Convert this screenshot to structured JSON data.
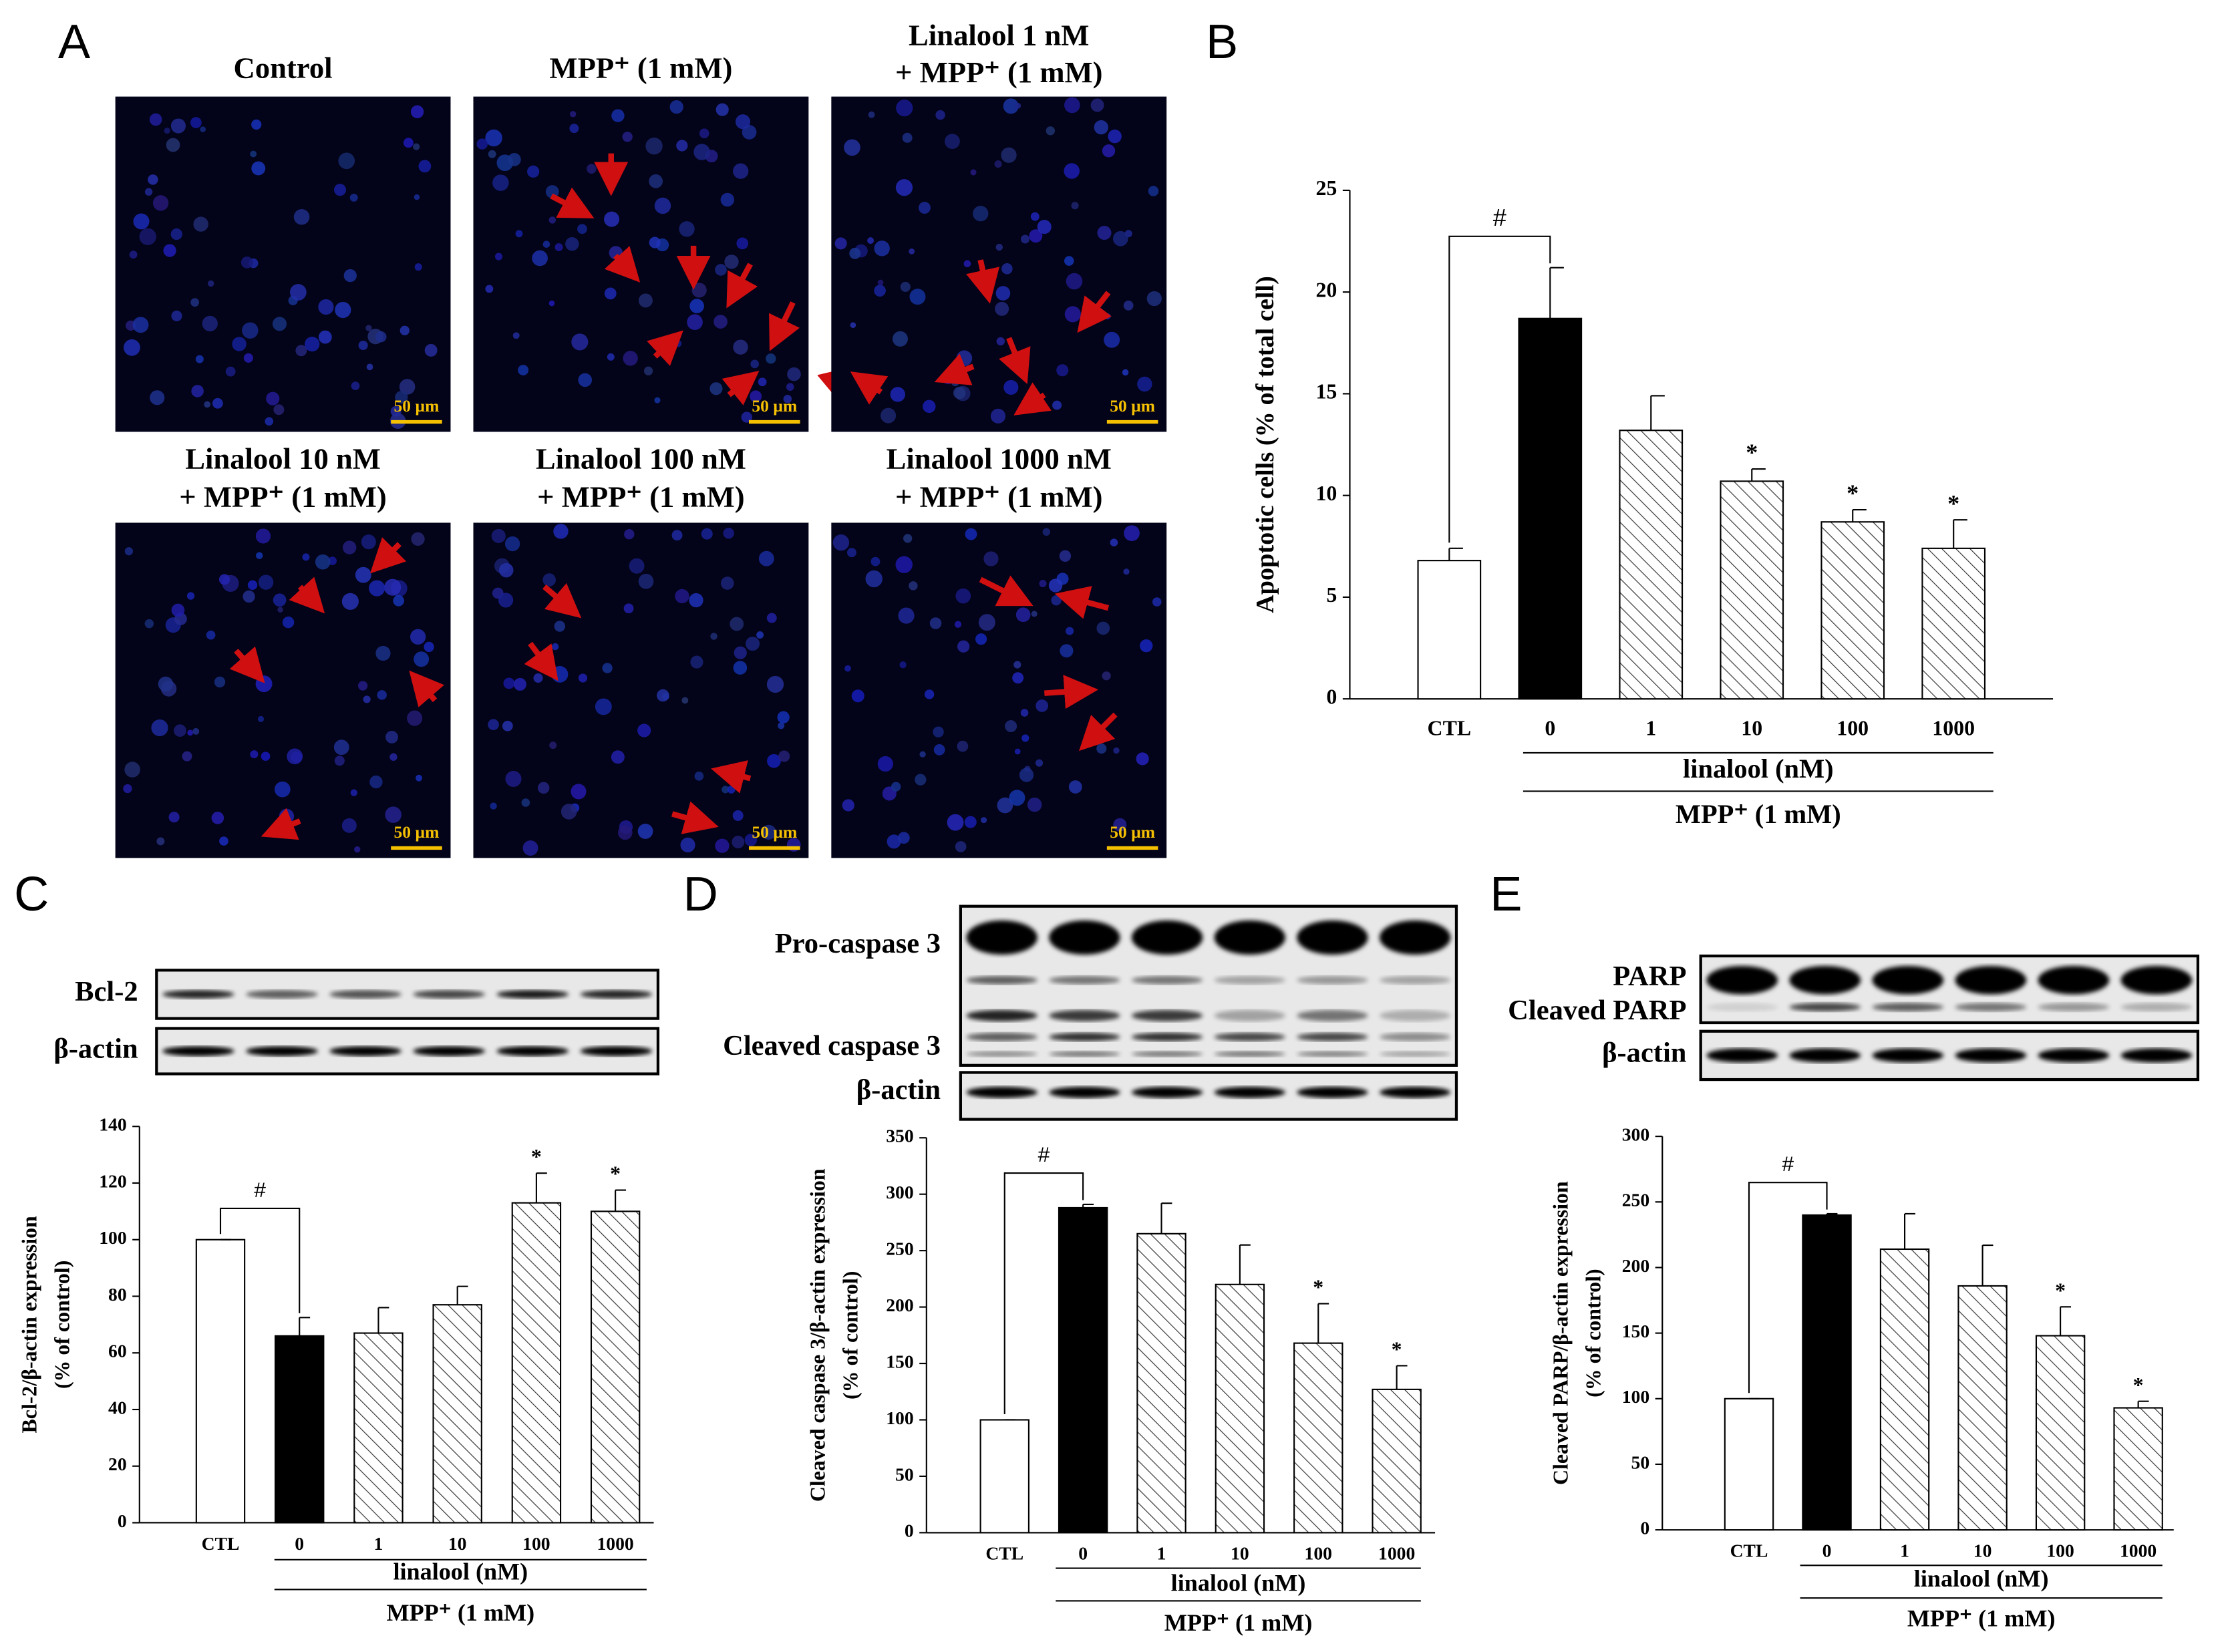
{
  "panel_letters": [
    "A",
    "B",
    "C",
    "D",
    "E"
  ],
  "micrographs": [
    {
      "title": [
        "Control"
      ],
      "scale_bar": "50 µm"
    },
    {
      "title": [
        "MPP⁺ (1 mM)"
      ],
      "scale_bar": "50 µm"
    },
    {
      "title": [
        "Linalool 1 nM",
        "+ MPP⁺ (1 mM)"
      ],
      "scale_bar": "50 µm"
    },
    {
      "title": [
        "Linalool 10 nM",
        "+ MPP⁺ (1 mM)"
      ],
      "scale_bar": "50 µm"
    },
    {
      "title": [
        "Linalool 100 nM",
        "+ MPP⁺ (1 mM)"
      ],
      "scale_bar": "50 µm"
    },
    {
      "title": [
        "Linalool 1000 nM",
        "+ MPP⁺ (1 mM)"
      ],
      "scale_bar": "50 µm"
    }
  ],
  "blots": [
    {
      "labels": [
        "Bcl-2",
        "β-actin"
      ]
    },
    {
      "labels": [
        "Pro-caspase 3",
        "Cleaved caspase 3",
        "β-actin"
      ]
    },
    {
      "labels": [
        "PARP",
        "Cleaved PARP",
        "β-actin"
      ]
    }
  ],
  "chart_data": [
    {
      "type": "bar",
      "categories": [
        "CTL",
        "0",
        "1",
        "10",
        "100",
        "1000"
      ],
      "values": [
        6.8,
        18.7,
        13.2,
        10.7,
        8.7,
        7.4
      ],
      "errors": [
        0.6,
        2.5,
        1.7,
        0.6,
        0.6,
        1.4
      ],
      "bar_styles": [
        "open",
        "solid",
        "hatched",
        "hatched",
        "hatched",
        "hatched"
      ],
      "ylim": [
        0,
        25
      ],
      "yticks": [
        0,
        5,
        10,
        15,
        20,
        25
      ],
      "ylabel": [
        "Apoptotic cells (% of total cell)"
      ],
      "bracket_label": "#",
      "markers": [
        null,
        null,
        null,
        "*",
        "*",
        "*"
      ],
      "group_labels": [
        "linalool (nM)",
        "MPP⁺ (1 mM)"
      ]
    },
    {
      "type": "bar",
      "categories": [
        "CTL",
        "0",
        "1",
        "10",
        "100",
        "1000"
      ],
      "values": [
        100,
        66,
        67,
        77,
        113,
        110
      ],
      "errors": [
        0,
        6.5,
        9,
        6.5,
        10.5,
        7.5
      ],
      "bar_styles": [
        "open",
        "solid",
        "hatched",
        "hatched",
        "hatched",
        "hatched"
      ],
      "ylim": [
        0,
        140
      ],
      "yticks": [
        0,
        20,
        40,
        60,
        80,
        100,
        120,
        140
      ],
      "ylabel": [
        "Bcl-2/β-actin expression",
        "(% of control)"
      ],
      "bracket_label": "#",
      "markers": [
        null,
        null,
        null,
        null,
        "*",
        "*"
      ],
      "group_labels": [
        "linalool (nM)",
        "MPP⁺ (1 mM)"
      ]
    },
    {
      "type": "bar",
      "categories": [
        "CTL",
        "0",
        "1",
        "10",
        "100",
        "1000"
      ],
      "values": [
        100,
        288,
        265,
        220,
        168,
        127
      ],
      "errors": [
        0,
        3,
        27,
        35,
        35,
        21
      ],
      "bar_styles": [
        "open",
        "solid",
        "hatched",
        "hatched",
        "hatched",
        "hatched"
      ],
      "ylim": [
        0,
        350
      ],
      "yticks": [
        0,
        50,
        100,
        150,
        200,
        250,
        300,
        350
      ],
      "ylabel": [
        "Cleaved caspase 3/β-actin expression",
        "(% of control)"
      ],
      "bracket_label": "#",
      "markers": [
        null,
        null,
        null,
        null,
        "*",
        "*"
      ],
      "group_labels": [
        "linalool (nM)",
        "MPP⁺ (1 mM)"
      ]
    },
    {
      "type": "bar",
      "categories": [
        "CTL",
        "0",
        "1",
        "10",
        "100",
        "1000"
      ],
      "values": [
        100,
        240,
        214,
        186,
        148,
        93
      ],
      "errors": [
        0,
        1,
        27,
        31,
        22,
        5
      ],
      "bar_styles": [
        "open",
        "solid",
        "hatched",
        "hatched",
        "hatched",
        "hatched"
      ],
      "ylim": [
        0,
        300
      ],
      "yticks": [
        0,
        50,
        100,
        150,
        200,
        250,
        300
      ],
      "ylabel": [
        "Cleaved PARP/β-actin expression",
        "(% of control)"
      ],
      "bracket_label": "#",
      "markers": [
        null,
        null,
        null,
        null,
        "*",
        "*"
      ],
      "group_labels": [
        "linalool (nM)",
        "MPP⁺ (1 mM)"
      ]
    }
  ]
}
